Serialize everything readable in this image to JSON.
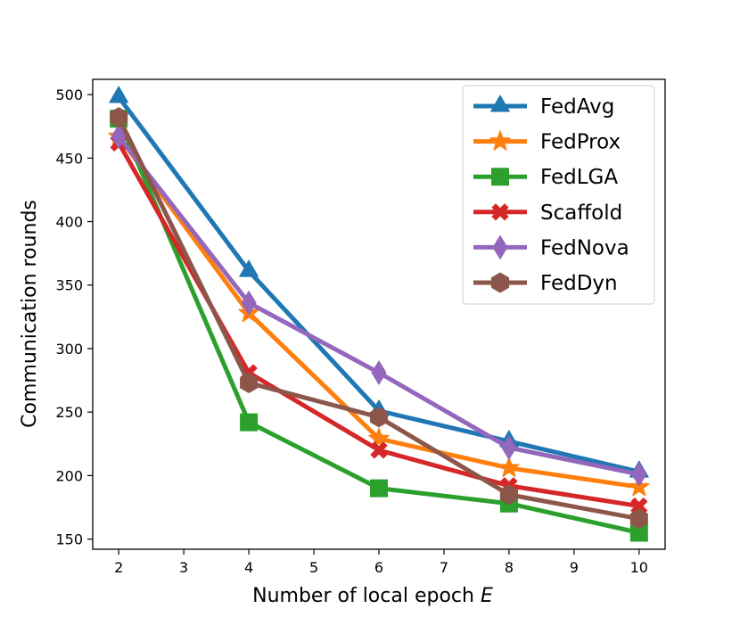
{
  "chart_data": {
    "type": "line",
    "title": "",
    "xlabel": "Number of local epoch",
    "xlabel_var": "E",
    "ylabel": "Communication rounds",
    "xlim": [
      1.6,
      10.4
    ],
    "ylim": [
      142,
      512
    ],
    "xticks": [
      2,
      3,
      4,
      5,
      6,
      7,
      8,
      9,
      10
    ],
    "yticks": [
      150,
      200,
      250,
      300,
      350,
      400,
      450,
      500
    ],
    "grid": false,
    "legend_position": "top-right",
    "x": [
      2,
      4,
      6,
      8,
      10
    ],
    "series": [
      {
        "name": "FedAvg",
        "color": "#1f77b4",
        "marker": "triangle",
        "values": [
          498,
          361,
          251,
          227,
          203
        ]
      },
      {
        "name": "FedProx",
        "color": "#ff7f0e",
        "marker": "star",
        "values": [
          467,
          328,
          229,
          206,
          191
        ]
      },
      {
        "name": "FedLGA",
        "color": "#2ca02c",
        "marker": "square",
        "values": [
          481,
          242,
          190,
          178,
          155
        ]
      },
      {
        "name": "Scaffold",
        "color": "#d62728",
        "marker": "x",
        "values": [
          462,
          281,
          220,
          192,
          176
        ]
      },
      {
        "name": "FedNova",
        "color": "#9467bd",
        "marker": "diamond",
        "values": [
          467,
          336,
          281,
          222,
          201
        ]
      },
      {
        "name": "FedDyn",
        "color": "#8c564b",
        "marker": "hexagon",
        "values": [
          482,
          273,
          246,
          185,
          166
        ]
      }
    ]
  }
}
